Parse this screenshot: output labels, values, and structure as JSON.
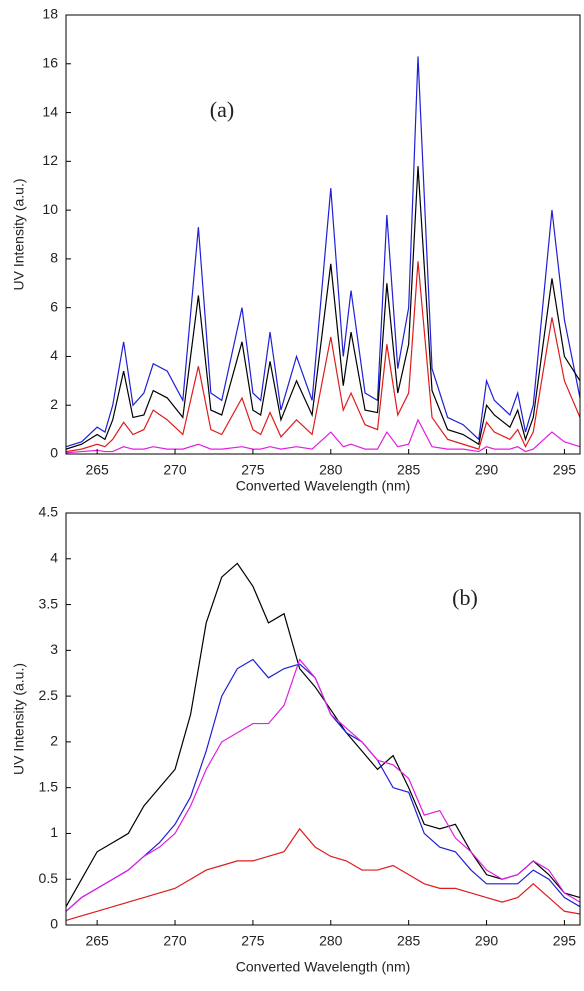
{
  "chart_data": [
    {
      "type": "line",
      "annotation": "(a)",
      "xlabel": "Converted Wavelength (nm)",
      "ylabel": "UV Intensity (a.u.)",
      "x": [
        263,
        264,
        265,
        265.5,
        266,
        266.7,
        267.3,
        268,
        268.6,
        269.5,
        270.5,
        271.5,
        272.3,
        273,
        274.3,
        275,
        275.5,
        276.1,
        276.8,
        277.8,
        278.8,
        280,
        280.8,
        281.3,
        282.2,
        283,
        283.6,
        284.3,
        285,
        285.6,
        286.5,
        287.5,
        288.5,
        289.5,
        290,
        290.5,
        291.5,
        292,
        292.5,
        293,
        294.2,
        295,
        296
      ],
      "series": [
        {
          "color": "#1f1fd6",
          "values": [
            0.3,
            0.5,
            1.1,
            0.9,
            2.0,
            4.6,
            2.0,
            2.5,
            3.7,
            3.4,
            2.2,
            9.3,
            2.5,
            2.2,
            6.0,
            2.5,
            2.2,
            5.0,
            1.8,
            4.0,
            2.2,
            10.9,
            4.0,
            6.7,
            2.5,
            2.2,
            9.8,
            3.5,
            6.0,
            16.3,
            3.5,
            1.5,
            1.2,
            0.6,
            3.0,
            2.2,
            1.6,
            2.5,
            0.9,
            2.0,
            10.0,
            5.5,
            2.3
          ]
        },
        {
          "color": "#000000",
          "values": [
            0.2,
            0.4,
            0.8,
            0.6,
            1.4,
            3.4,
            1.5,
            1.6,
            2.6,
            2.3,
            1.5,
            6.5,
            1.8,
            1.6,
            4.6,
            1.8,
            1.6,
            3.8,
            1.4,
            3.0,
            1.6,
            7.8,
            2.8,
            5.0,
            1.8,
            1.7,
            7.0,
            2.5,
            4.5,
            11.8,
            2.6,
            1.0,
            0.8,
            0.4,
            2.0,
            1.6,
            1.1,
            1.8,
            0.6,
            1.5,
            7.2,
            4.0,
            3.0
          ]
        },
        {
          "color": "#e01b1b",
          "values": [
            0.1,
            0.2,
            0.4,
            0.3,
            0.6,
            1.3,
            0.8,
            1.0,
            1.8,
            1.4,
            0.8,
            3.6,
            1.0,
            0.8,
            2.3,
            1.0,
            0.8,
            1.7,
            0.7,
            1.4,
            0.8,
            4.8,
            1.8,
            2.5,
            1.2,
            1.0,
            4.5,
            1.6,
            2.5,
            7.9,
            1.5,
            0.6,
            0.4,
            0.2,
            1.3,
            0.9,
            0.6,
            1.0,
            0.3,
            0.9,
            5.6,
            3.0,
            1.5
          ]
        },
        {
          "color": "#e020e0",
          "values": [
            0.05,
            0.1,
            0.15,
            0.1,
            0.1,
            0.3,
            0.2,
            0.2,
            0.3,
            0.2,
            0.2,
            0.4,
            0.2,
            0.2,
            0.3,
            0.2,
            0.2,
            0.3,
            0.2,
            0.3,
            0.2,
            0.9,
            0.3,
            0.4,
            0.2,
            0.2,
            0.9,
            0.3,
            0.4,
            1.4,
            0.3,
            0.2,
            0.2,
            0.1,
            0.3,
            0.2,
            0.2,
            0.3,
            0.1,
            0.2,
            0.9,
            0.5,
            0.3
          ]
        }
      ],
      "xlim": [
        263,
        296
      ],
      "xticks": [
        265,
        270,
        275,
        280,
        285,
        290,
        295
      ],
      "ylim": [
        0,
        18
      ],
      "yticks": [
        0,
        2,
        4,
        6,
        8,
        10,
        12,
        14,
        16,
        18
      ]
    },
    {
      "type": "line",
      "annotation": "(b)",
      "xlabel": "Converted Wavelength (nm)",
      "ylabel": "UV Intensity (a.u.)",
      "x": [
        263,
        264,
        265,
        266,
        267,
        268,
        269,
        270,
        271,
        272,
        273,
        274,
        275,
        276,
        277,
        278,
        279,
        280,
        281,
        282,
        283,
        284,
        285,
        286,
        287,
        288,
        289,
        290,
        291,
        292,
        293,
        294,
        295,
        296
      ],
      "series": [
        {
          "color": "#000000",
          "values": [
            0.2,
            0.5,
            0.8,
            0.9,
            1.0,
            1.3,
            1.5,
            1.7,
            2.3,
            3.3,
            3.8,
            3.95,
            3.7,
            3.3,
            3.4,
            2.8,
            2.6,
            2.35,
            2.1,
            1.9,
            1.7,
            1.85,
            1.5,
            1.1,
            1.05,
            1.1,
            0.8,
            0.55,
            0.5,
            0.55,
            0.7,
            0.55,
            0.35,
            0.3
          ]
        },
        {
          "color": "#1f1fd6",
          "values": [
            0.15,
            0.3,
            0.4,
            0.5,
            0.6,
            0.75,
            0.9,
            1.1,
            1.4,
            1.9,
            2.5,
            2.8,
            2.9,
            2.7,
            2.8,
            2.85,
            2.7,
            2.3,
            2.1,
            2.0,
            1.8,
            1.5,
            1.45,
            1.0,
            0.85,
            0.8,
            0.6,
            0.45,
            0.45,
            0.45,
            0.6,
            0.5,
            0.3,
            0.2
          ]
        },
        {
          "color": "#e020e0",
          "values": [
            0.15,
            0.3,
            0.4,
            0.5,
            0.6,
            0.75,
            0.85,
            1.0,
            1.3,
            1.7,
            2.0,
            2.1,
            2.2,
            2.2,
            2.4,
            2.9,
            2.7,
            2.3,
            2.15,
            2.0,
            1.8,
            1.75,
            1.6,
            1.2,
            1.25,
            0.95,
            0.8,
            0.6,
            0.5,
            0.55,
            0.7,
            0.6,
            0.35,
            0.25
          ]
        },
        {
          "color": "#e01b1b",
          "values": [
            0.05,
            0.1,
            0.15,
            0.2,
            0.25,
            0.3,
            0.35,
            0.4,
            0.5,
            0.6,
            0.65,
            0.7,
            0.7,
            0.75,
            0.8,
            1.05,
            0.85,
            0.75,
            0.7,
            0.6,
            0.6,
            0.65,
            0.55,
            0.45,
            0.4,
            0.4,
            0.35,
            0.3,
            0.25,
            0.3,
            0.45,
            0.3,
            0.15,
            0.12
          ]
        }
      ],
      "xlim": [
        263,
        296
      ],
      "xticks": [
        265,
        270,
        275,
        280,
        285,
        290,
        295
      ],
      "ylim": [
        0,
        4.5
      ],
      "yticks": [
        0,
        0.5,
        1,
        1.5,
        2,
        2.5,
        3,
        3.5,
        4,
        4.5
      ]
    }
  ]
}
